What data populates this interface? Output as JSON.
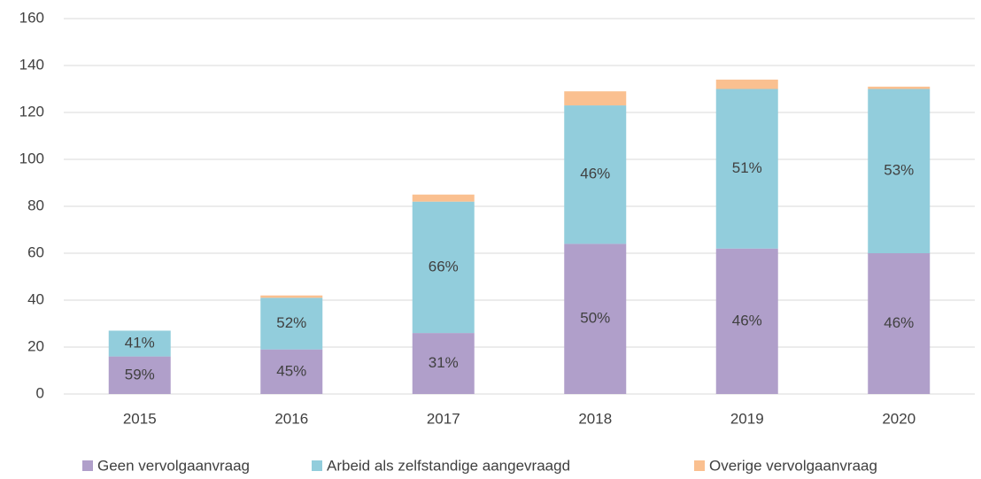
{
  "chart_data": {
    "type": "stacked_bar",
    "categories": [
      "2015",
      "2016",
      "2017",
      "2018",
      "2019",
      "2020"
    ],
    "series": [
      {
        "name": "Geen vervolgaanvraag",
        "color": "#b09fca",
        "values": [
          16,
          19,
          26,
          64,
          62,
          60
        ],
        "labels": [
          "59%",
          "45%",
          "31%",
          "50%",
          "46%",
          "46%"
        ]
      },
      {
        "name": "Arbeid als zelfstandige aangevraagd",
        "color": "#92cddc",
        "values": [
          11,
          22,
          56,
          59,
          68,
          70
        ],
        "labels": [
          "41%",
          "52%",
          "66%",
          "46%",
          "51%",
          "53%"
        ]
      },
      {
        "name": "Overige vervolgaanvraag",
        "color": "#fac090",
        "values": [
          0,
          1,
          3,
          6,
          4,
          1
        ]
      }
    ],
    "ylim": [
      0,
      160
    ],
    "yticks": [
      0,
      20,
      40,
      60,
      80,
      100,
      120,
      140,
      160
    ],
    "grid": true,
    "legend": "bottom"
  }
}
